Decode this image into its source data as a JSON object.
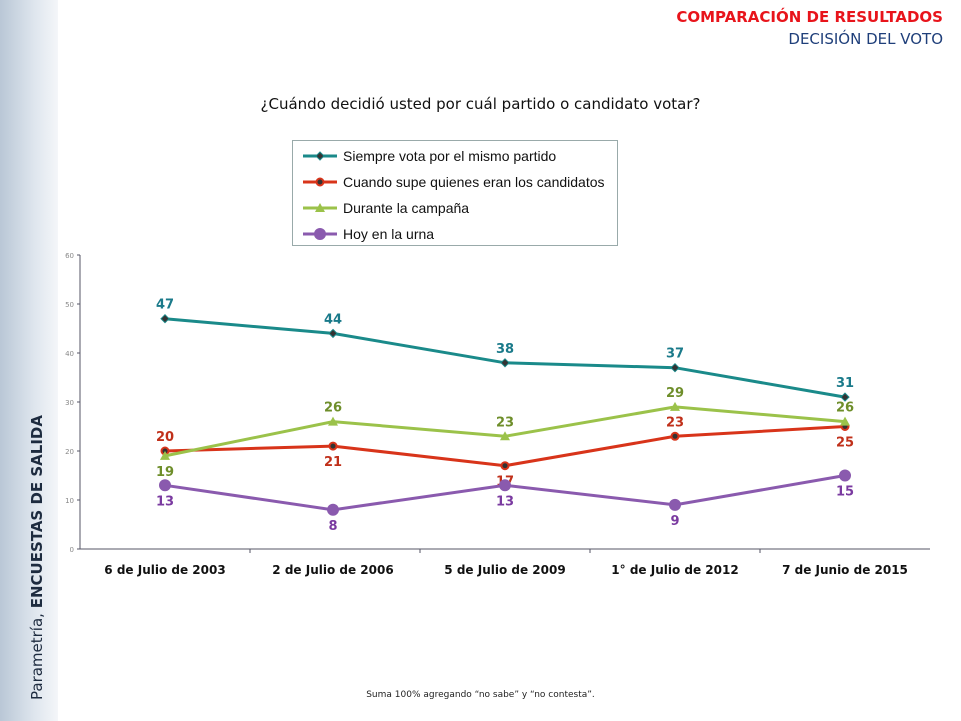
{
  "header": {
    "title": "COMPARACIÓN DE RESULTADOS",
    "subtitle": "DECISIÓN DEL VOTO"
  },
  "sidebar": {
    "source": "Parametría, ",
    "survey": "ENCUESTAS DE SALIDA"
  },
  "footnote": "Suma 100% agregando “no sabe” y “no contesta”.",
  "chart_data": {
    "type": "line",
    "title": "¿Cuándo decidió usted por cuál partido o candidato votar?",
    "categories": [
      "6 de Julio de 2003",
      "2 de Julio de 2006",
      "5 de Julio de 2009",
      "1° de Julio de 2012",
      "7 de Junio de 2015"
    ],
    "ylim": [
      0,
      60
    ],
    "yticks": [
      0,
      10,
      20,
      30,
      40,
      50,
      60
    ],
    "legend_position": "top-center",
    "series": [
      {
        "name": "Siempre vota por el mismo partido",
        "color": "#1a8a8a",
        "label_color": "#1a7a8a",
        "marker": "diamond",
        "values": [
          47,
          44,
          38,
          37,
          31
        ]
      },
      {
        "name": "Cuando supe quienes eran los candidatos",
        "color": "#d8341a",
        "label_color": "#c0301a",
        "marker": "circle",
        "values": [
          20,
          21,
          17,
          23,
          25
        ]
      },
      {
        "name": "Durante la campaña",
        "color": "#9bc24a",
        "label_color": "#6e8e2a",
        "marker": "triangle",
        "values": [
          19,
          26,
          23,
          29,
          26
        ]
      },
      {
        "name": "Hoy en la urna",
        "color": "#8a5aae",
        "label_color": "#7a3aa0",
        "marker": "circle",
        "values": [
          13,
          8,
          13,
          9,
          15
        ]
      }
    ]
  }
}
